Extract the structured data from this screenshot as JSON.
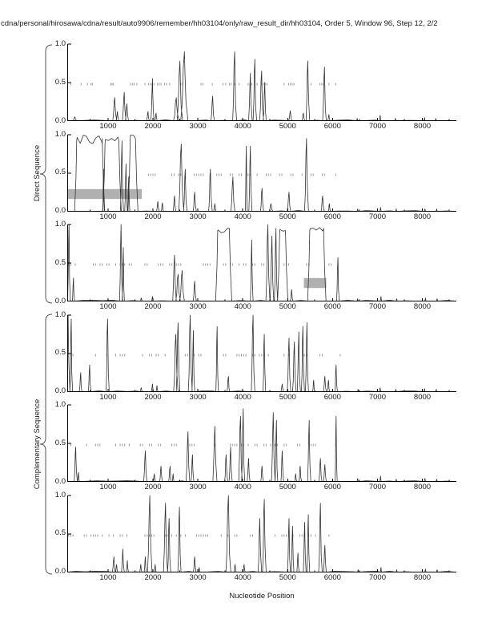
{
  "chart_data": {
    "type": "line",
    "title": "cdna/personal/hirosawa/cdna/result/auto9906/remember/hh03104/only/raw_result_dir/hh03104, Order 5, Window 96, Step 12, 2/2",
    "xlabel": "Nucleotide Position",
    "ylabel_groups": [
      {
        "label": "Direct Sequence",
        "subplots": [
          0,
          1,
          2
        ]
      },
      {
        "label": "Complementary Sequence",
        "subplots": [
          3,
          4,
          5
        ]
      }
    ],
    "xlim": [
      100,
      8740
    ],
    "ylim": [
      0,
      1
    ],
    "xticks": [
      1000,
      2000,
      3000,
      4000,
      5000,
      6000,
      7000,
      8000
    ],
    "xtick_minor_step": 500,
    "yticks": [
      {
        "value": 1.0,
        "label": "1.0"
      },
      {
        "value": 0.5,
        "label": "0.5"
      },
      {
        "value": 0.0,
        "label": "0.0"
      }
    ],
    "grid": false,
    "legend": null,
    "marker_row_y": 0.48,
    "subplots": [
      {
        "name": "direct-frame-1",
        "peaks": [
          [
            260,
            0.05,
            40
          ],
          [
            1150,
            0.3,
            45
          ],
          [
            1210,
            0.12,
            30
          ],
          [
            1360,
            0.37,
            40
          ],
          [
            1420,
            0.22,
            35
          ],
          [
            1890,
            0.12,
            30
          ],
          [
            1990,
            0.55,
            35
          ],
          [
            2070,
            0.1,
            25
          ],
          [
            2520,
            0.3,
            60
          ],
          [
            2600,
            0.78,
            60
          ],
          [
            2700,
            0.9,
            80
          ],
          [
            3330,
            0.32,
            40
          ],
          [
            3820,
            0.9,
            45
          ],
          [
            4170,
            0.62,
            40
          ],
          [
            4270,
            0.8,
            40
          ],
          [
            4420,
            0.65,
            45
          ],
          [
            4490,
            0.5,
            35
          ],
          [
            5060,
            0.13,
            35
          ],
          [
            5350,
            0.1,
            30
          ],
          [
            5450,
            0.78,
            40
          ],
          [
            5820,
            0.7,
            40
          ],
          [
            5920,
            0.08,
            25
          ]
        ],
        "plateaus": [],
        "blips": [
          [
            6550,
            0.03
          ],
          [
            7060,
            0.07
          ],
          [
            7400,
            0.03
          ],
          [
            8050,
            0.04
          ],
          [
            8300,
            0.03
          ]
        ],
        "dashes": [
          170,
          400,
          540,
          620,
          650,
          1060,
          1090,
          1120,
          1500,
          1540,
          1580,
          1640,
          1820,
          1900,
          1940,
          1980,
          2020,
          2100,
          2140,
          2180,
          2260,
          2300,
          2370,
          2620,
          2660,
          3070,
          3110,
          3320,
          3560,
          3620,
          3700,
          3740,
          3820,
          3920,
          4120,
          4160,
          4200,
          4320,
          4420,
          4460,
          4500,
          4540,
          4920,
          5020,
          5060,
          5100,
          5140,
          5520,
          5720,
          5760,
          5800,
          5920,
          6070
        ],
        "highlight_regions": []
      },
      {
        "name": "direct-frame-2",
        "peaks": [
          [
            900,
            0.55,
            20
          ],
          [
            1310,
            0.92,
            35
          ],
          [
            1400,
            0.62,
            30
          ],
          [
            1460,
            0.45,
            25
          ],
          [
            2110,
            0.13,
            30
          ],
          [
            2210,
            0.11,
            25
          ],
          [
            2480,
            0.2,
            30
          ],
          [
            2630,
            0.88,
            55
          ],
          [
            2720,
            0.55,
            40
          ],
          [
            2930,
            0.25,
            35
          ],
          [
            3280,
            0.55,
            40
          ],
          [
            3380,
            0.1,
            25
          ],
          [
            3780,
            0.45,
            45
          ],
          [
            4080,
            0.85,
            22
          ],
          [
            4170,
            0.85,
            35
          ],
          [
            4430,
            0.3,
            35
          ],
          [
            4630,
            0.1,
            40
          ],
          [
            5030,
            0.25,
            40
          ],
          [
            5420,
            0.95,
            45
          ],
          [
            5780,
            0.2,
            35
          ],
          [
            5930,
            0.1,
            25
          ]
        ],
        "plateaus": [
          [
            310,
            870,
            1.0
          ],
          [
            940,
            1240,
            0.97
          ],
          [
            1500,
            1610,
            1.0
          ]
        ],
        "blips": [
          [
            6560,
            0.03
          ],
          [
            7070,
            0.05
          ],
          [
            7420,
            0.03
          ],
          [
            8060,
            0.03
          ],
          [
            8320,
            0.03
          ]
        ],
        "dashes": [
          1900,
          1950,
          2000,
          2050,
          2420,
          2470,
          2570,
          2620,
          2920,
          2970,
          3020,
          3070,
          3120,
          3270,
          3420,
          3470,
          3520,
          3720,
          3770,
          3920,
          3970,
          4120,
          4170,
          4320,
          4520,
          4570,
          4620,
          4820,
          4870,
          5070,
          5120,
          5320,
          5520,
          5570,
          5770,
          5820,
          6070
        ],
        "highlight_regions": [
          {
            "x1": 40,
            "x2": 1750,
            "y1": 0.16,
            "y2": 0.29
          }
        ]
      },
      {
        "name": "direct-frame-3",
        "peaks": [
          [
            130,
            1.0,
            30
          ],
          [
            230,
            0.3,
            25
          ],
          [
            1290,
            1.0,
            35
          ],
          [
            1340,
            0.7,
            25
          ],
          [
            1740,
            0.04,
            20
          ],
          [
            1990,
            0.06,
            20
          ],
          [
            2480,
            0.6,
            40
          ],
          [
            2560,
            0.35,
            50
          ],
          [
            2650,
            0.4,
            50
          ],
          [
            2930,
            0.26,
            35
          ],
          [
            4200,
            0.8,
            30
          ],
          [
            4560,
            1.0,
            45
          ],
          [
            4650,
            0.85,
            40
          ],
          [
            4740,
            0.95,
            35
          ],
          [
            5090,
            0.15,
            30
          ],
          [
            6120,
            0.57,
            30
          ]
        ],
        "plateaus": [
          [
            3450,
            3700,
            1.0
          ],
          [
            4830,
            4950,
            0.97
          ],
          [
            5500,
            5800,
            1.0
          ]
        ],
        "blips": [
          [
            6560,
            0.03
          ],
          [
            7080,
            0.06
          ],
          [
            7430,
            0.03
          ],
          [
            8070,
            0.04
          ],
          [
            8330,
            0.03
          ]
        ],
        "dashes": [
          120,
          170,
          270,
          670,
          720,
          820,
          870,
          970,
          1020,
          1170,
          1270,
          1320,
          1370,
          1470,
          1520,
          1820,
          1870,
          2120,
          2170,
          2220,
          2370,
          2420,
          2520,
          2570,
          2620,
          3120,
          3170,
          3220,
          3270,
          3570,
          3620,
          3720,
          3770,
          3920,
          4020,
          4070,
          4220,
          4270,
          4420,
          4470,
          4920,
          4970,
          5020,
          5420,
          5470,
          5920,
          5970,
          6120
        ],
        "highlight_regions": [
          {
            "x1": 5360,
            "x2": 5860,
            "y1": 0.17,
            "y2": 0.3
          }
        ]
      },
      {
        "name": "complementary-frame-1",
        "peaks": [
          [
            110,
            1.0,
            40
          ],
          [
            180,
            0.95,
            30
          ],
          [
            390,
            0.25,
            30
          ],
          [
            590,
            0.35,
            30
          ],
          [
            990,
            0.95,
            35
          ],
          [
            1740,
            0.05,
            25
          ],
          [
            1990,
            0.1,
            25
          ],
          [
            2090,
            0.08,
            20
          ],
          [
            2510,
            0.75,
            50
          ],
          [
            2560,
            0.9,
            40
          ],
          [
            2830,
            1.0,
            45
          ],
          [
            2900,
            0.8,
            30
          ],
          [
            3430,
            0.85,
            30
          ],
          [
            3680,
            0.2,
            30
          ],
          [
            4230,
            1.0,
            40
          ],
          [
            4480,
            0.75,
            30
          ],
          [
            4880,
            0.1,
            30
          ],
          [
            5030,
            0.7,
            40
          ],
          [
            5150,
            0.65,
            40
          ],
          [
            5250,
            0.78,
            35
          ],
          [
            5340,
            0.85,
            35
          ],
          [
            5430,
            0.9,
            35
          ],
          [
            5580,
            0.15,
            25
          ],
          [
            5830,
            0.2,
            30
          ],
          [
            5910,
            0.15,
            25
          ],
          [
            6080,
            0.35,
            30
          ]
        ],
        "plateaus": [],
        "blips": [
          [
            6570,
            0.03
          ],
          [
            7060,
            0.05
          ],
          [
            7410,
            0.03
          ],
          [
            8050,
            0.04
          ],
          [
            8310,
            0.03
          ]
        ],
        "dashes": [
          220,
          720,
          970,
          1170,
          1270,
          1320,
          1370,
          1770,
          1920,
          1970,
          2070,
          2120,
          2270,
          2720,
          2770,
          2920,
          3020,
          3070,
          3570,
          3620,
          3870,
          3920,
          3970,
          4020,
          4070,
          4220,
          4270,
          4370,
          4420,
          4470,
          4570,
          4920,
          5020,
          5370,
          5420,
          5720,
          5770,
          6170
        ],
        "highlight_regions": []
      },
      {
        "name": "complementary-frame-2",
        "peaks": [
          [
            280,
            0.45,
            35
          ],
          [
            340,
            0.12,
            20
          ],
          [
            1830,
            0.4,
            35
          ],
          [
            2030,
            0.1,
            25
          ],
          [
            2180,
            0.2,
            30
          ],
          [
            2380,
            0.2,
            30
          ],
          [
            2450,
            0.1,
            20
          ],
          [
            2780,
            0.65,
            40
          ],
          [
            2880,
            0.35,
            30
          ],
          [
            3380,
            0.72,
            45
          ],
          [
            3630,
            0.35,
            35
          ],
          [
            3730,
            0.45,
            35
          ],
          [
            3950,
            0.85,
            40
          ],
          [
            4010,
            0.95,
            35
          ],
          [
            4130,
            0.3,
            30
          ],
          [
            4430,
            0.2,
            30
          ],
          [
            4680,
            0.9,
            40
          ],
          [
            4750,
            0.8,
            30
          ],
          [
            4880,
            0.4,
            30
          ],
          [
            5180,
            0.1,
            25
          ],
          [
            5280,
            0.2,
            30
          ],
          [
            5480,
            0.8,
            35
          ],
          [
            5730,
            0.3,
            35
          ],
          [
            5830,
            0.22,
            30
          ],
          [
            6080,
            0.85,
            25
          ]
        ],
        "plateaus": [],
        "blips": [
          [
            6560,
            0.04
          ],
          [
            7070,
            0.07
          ],
          [
            7420,
            0.03
          ],
          [
            8060,
            0.04
          ],
          [
            8320,
            0.03
          ]
        ],
        "dashes": [
          170,
          520,
          720,
          770,
          820,
          1170,
          1270,
          1320,
          1370,
          1470,
          1720,
          1770,
          1920,
          1970,
          2120,
          2170,
          2420,
          2470,
          2520,
          2820,
          2870,
          2920,
          3370,
          3720,
          3770,
          3820,
          3870,
          3970,
          4020,
          4120,
          4270,
          4320,
          4470,
          4520,
          4620,
          4720,
          4770,
          4920,
          4970,
          5220,
          5270,
          5520,
          5570,
          5620,
          6070
        ],
        "highlight_regions": []
      },
      {
        "name": "complementary-frame-3",
        "peaks": [
          [
            1130,
            0.2,
            35
          ],
          [
            1190,
            0.1,
            25
          ],
          [
            1330,
            0.3,
            30
          ],
          [
            1430,
            0.15,
            25
          ],
          [
            1730,
            0.1,
            25
          ],
          [
            1830,
            0.2,
            25
          ],
          [
            1930,
            1.0,
            50
          ],
          [
            2050,
            0.1,
            20
          ],
          [
            2280,
            0.9,
            45
          ],
          [
            2360,
            0.7,
            35
          ],
          [
            2590,
            0.85,
            35
          ],
          [
            2930,
            0.2,
            30
          ],
          [
            3030,
            0.06,
            20
          ],
          [
            3680,
            1.0,
            55
          ],
          [
            3830,
            0.1,
            25
          ],
          [
            4030,
            0.1,
            25
          ],
          [
            4380,
            0.7,
            40
          ],
          [
            4480,
            0.95,
            40
          ],
          [
            5030,
            0.7,
            35
          ],
          [
            5110,
            0.6,
            30
          ],
          [
            5230,
            0.25,
            25
          ],
          [
            5380,
            0.65,
            30
          ],
          [
            5460,
            0.75,
            30
          ],
          [
            5730,
            0.9,
            40
          ],
          [
            5830,
            0.35,
            30
          ]
        ],
        "plateaus": [],
        "blips": [
          [
            6570,
            0.03
          ],
          [
            7080,
            0.06
          ],
          [
            7430,
            0.03
          ],
          [
            8070,
            0.04
          ],
          [
            8330,
            0.03
          ]
        ],
        "dashes": [
          120,
          170,
          220,
          470,
          520,
          620,
          670,
          720,
          770,
          870,
          1020,
          1120,
          1270,
          1320,
          1420,
          1820,
          1870,
          1920,
          1970,
          2020,
          2270,
          2320,
          2420,
          2520,
          2620,
          2720,
          2970,
          3020,
          3070,
          3120,
          3170,
          3220,
          3520,
          3670,
          3820,
          3870,
          4170,
          4220,
          4720,
          4870,
          4920,
          4970,
          5020,
          5120,
          5270,
          5320,
          5370,
          5470,
          5520,
          5620,
          5920
        ],
        "highlight_regions": []
      }
    ]
  },
  "colors": {
    "line": "#333333",
    "axis": "#000000",
    "dash_marker": "#999999",
    "highlight": "#b0b0b0",
    "text": "#1a1a1a",
    "background": "#ffffff"
  }
}
